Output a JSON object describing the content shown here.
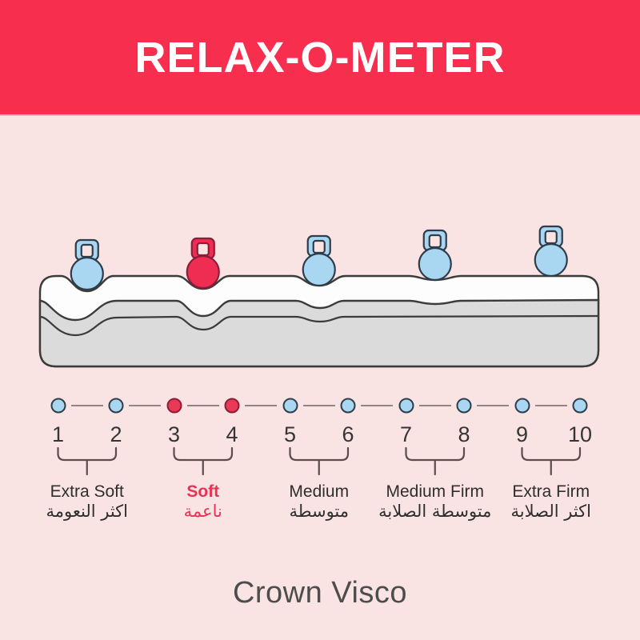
{
  "header": {
    "title": "RELAX-O-METER"
  },
  "brand": {
    "name": "Crown Visco"
  },
  "scale": {
    "dots": [
      {
        "number": "1",
        "color": "blue"
      },
      {
        "number": "2",
        "color": "blue"
      },
      {
        "number": "3",
        "color": "red"
      },
      {
        "number": "4",
        "color": "red"
      },
      {
        "number": "5",
        "color": "blue"
      },
      {
        "number": "6",
        "color": "blue"
      },
      {
        "number": "7",
        "color": "blue"
      },
      {
        "number": "8",
        "color": "blue"
      },
      {
        "number": "9",
        "color": "blue"
      },
      {
        "number": "10",
        "color": "blue"
      }
    ],
    "groups": [
      {
        "label_en": "Extra Soft",
        "label_ar": "اكثر النعومة",
        "from": 1,
        "to": 2,
        "highlight": false
      },
      {
        "label_en": "Soft",
        "label_ar": "ناعمة",
        "from": 3,
        "to": 4,
        "highlight": true
      },
      {
        "label_en": "Medium",
        "label_ar": "متوسطة",
        "from": 5,
        "to": 6,
        "highlight": false
      },
      {
        "label_en": "Medium Firm",
        "label_ar": "متوسطة الصلابة",
        "from": 7,
        "to": 8,
        "highlight": false
      },
      {
        "label_en": "Extra Firm",
        "label_ar": "اكثر الصلابة",
        "from": 9,
        "to": 10,
        "highlight": false
      }
    ]
  },
  "illustration": {
    "weights": [
      {
        "slot": 1,
        "color": "blue"
      },
      {
        "slot": 2,
        "color": "red"
      },
      {
        "slot": 3,
        "color": "blue"
      },
      {
        "slot": 4,
        "color": "blue"
      },
      {
        "slot": 5,
        "color": "blue"
      }
    ]
  },
  "colors": {
    "banner_red": "#F72E4D",
    "background_pink": "#FAE3E3",
    "weight_blue": "#A9D6F1",
    "weight_blue_outline": "#2E3D49",
    "weight_red": "#EF2D52",
    "weight_red_outline": "#8F1B37",
    "dot_red": "#E93A55",
    "outline_dark": "#3B3B3B",
    "connector_gray": "#8F8585",
    "bracket_brown": "#5C4C4C",
    "text_dark": "#353535",
    "soft_red": "#E73355",
    "brand_gray": "#4D4D4D"
  }
}
